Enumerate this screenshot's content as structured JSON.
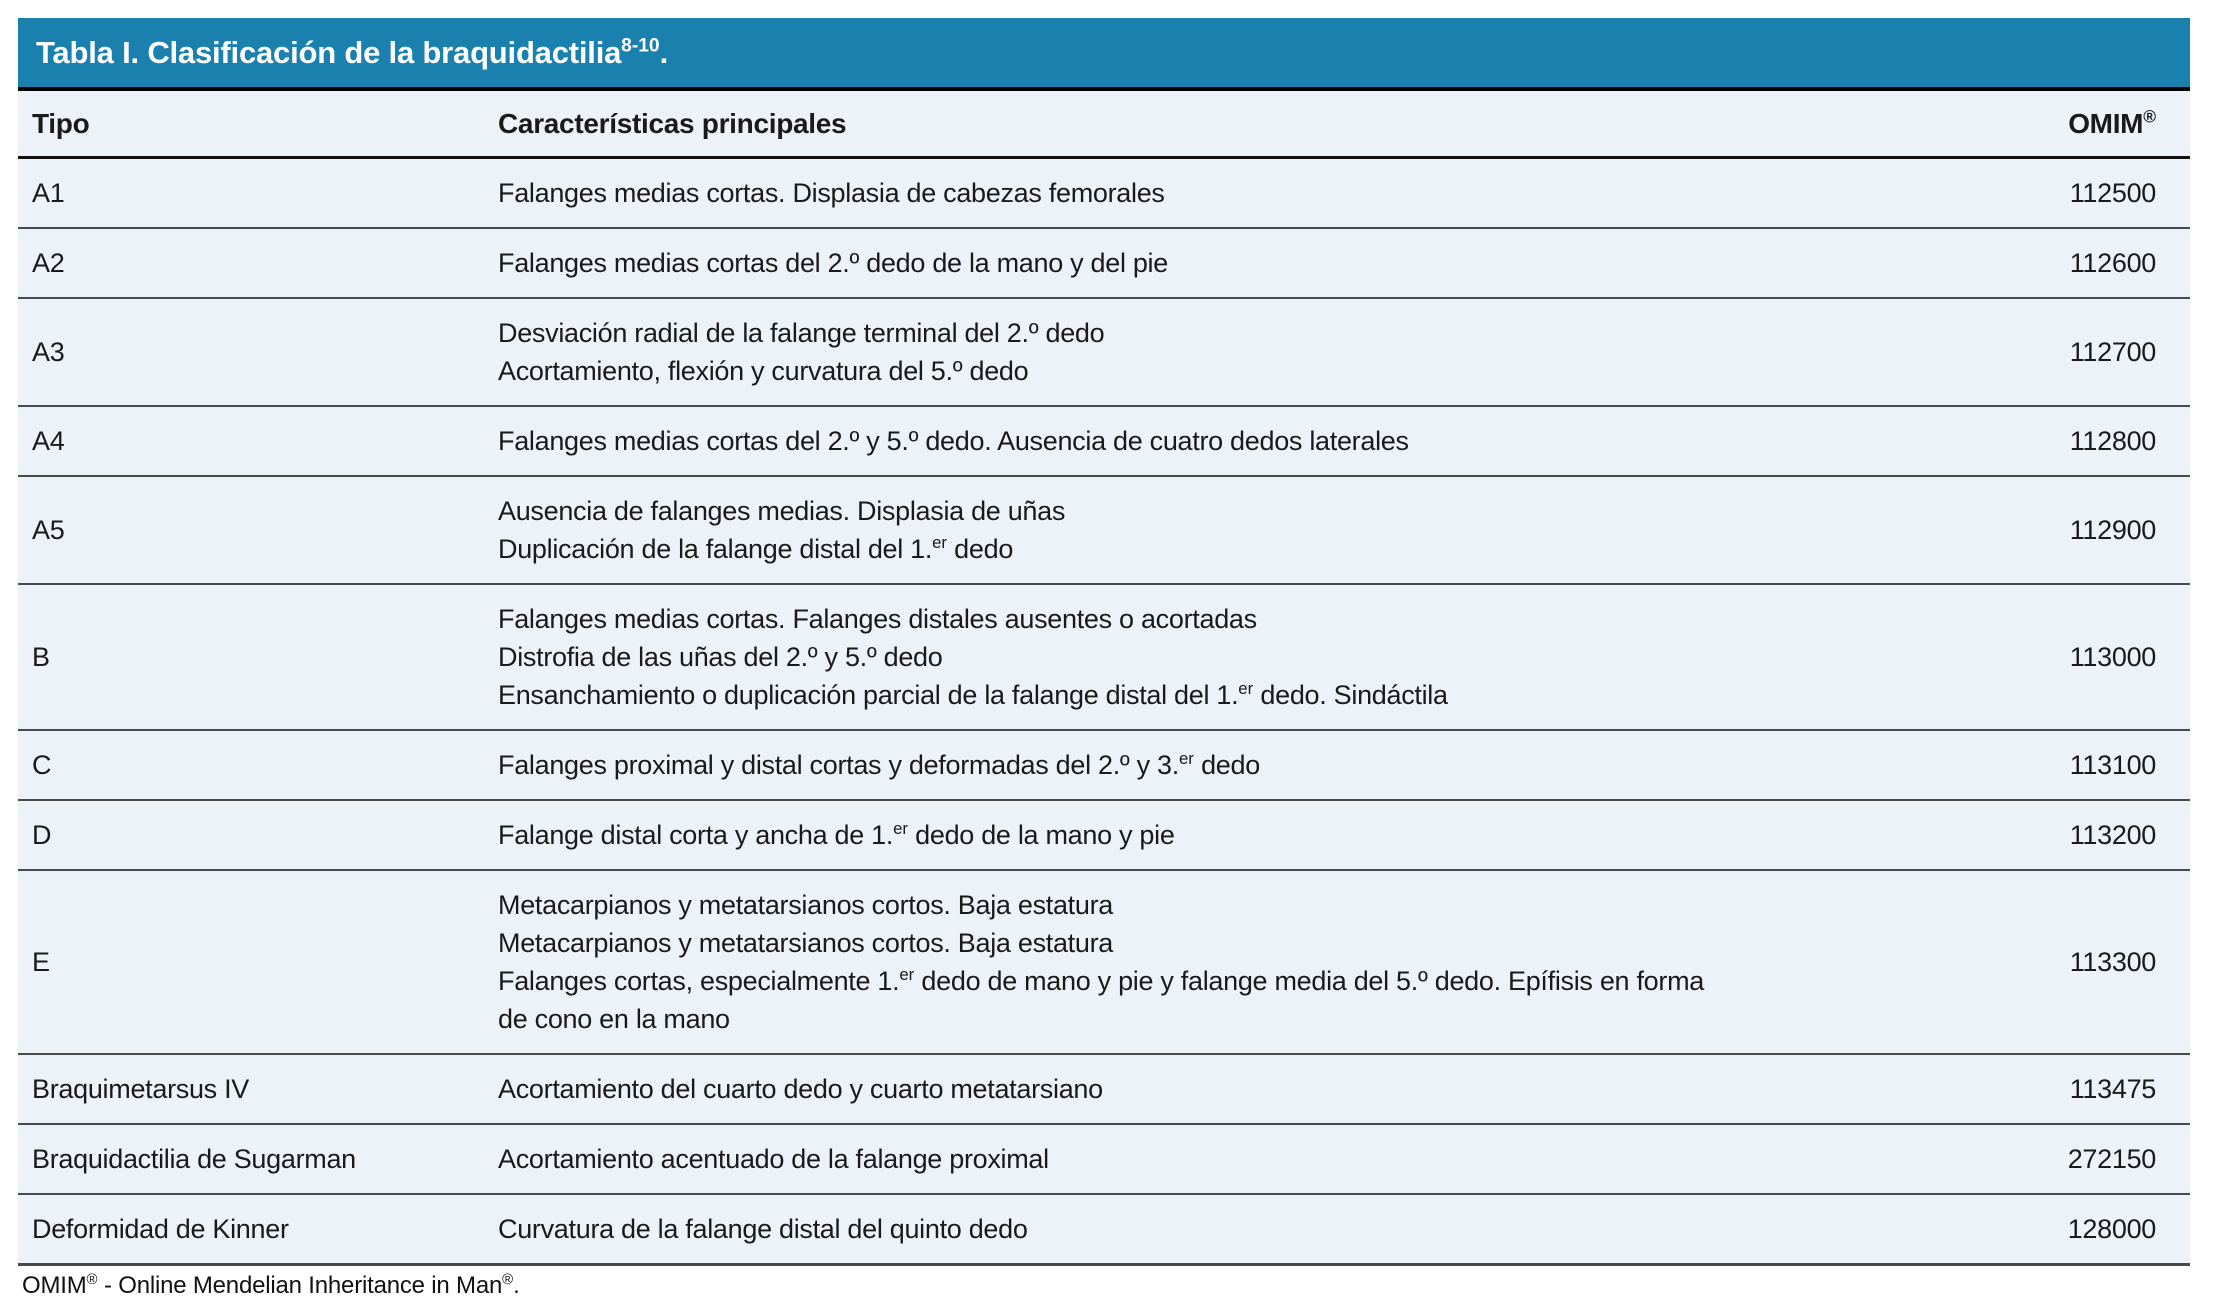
{
  "table": {
    "title": "Tabla I. Clasificación de la braquidactilia^{8-10}.",
    "accent_color": "#1a80ad",
    "row_background": "#edf1f8",
    "headers": {
      "tipo": "Tipo",
      "caracteristicas": "Características principales",
      "omim": "OMIM^{®}"
    },
    "rows": [
      {
        "tipo": "A1",
        "caracteristicas": [
          "Falanges medias cortas. Displasia de cabezas femorales"
        ],
        "omim": "112500"
      },
      {
        "tipo": "A2",
        "caracteristicas": [
          "Falanges medias cortas del 2.º dedo de la mano y del pie"
        ],
        "omim": "112600"
      },
      {
        "tipo": "A3",
        "caracteristicas": [
          "Desviación radial de la falange terminal del 2.º dedo",
          "Acortamiento, flexión y curvatura del 5.º dedo"
        ],
        "omim": "112700"
      },
      {
        "tipo": "A4",
        "caracteristicas": [
          "Falanges medias cortas del 2.º y 5.º dedo. Ausencia de cuatro dedos laterales"
        ],
        "omim": "112800"
      },
      {
        "tipo": "A5",
        "caracteristicas": [
          "Ausencia de falanges medias. Displasia de uñas",
          "Duplicación de la falange distal del 1.^{er} dedo"
        ],
        "omim": "112900"
      },
      {
        "tipo": "B",
        "caracteristicas": [
          "Falanges medias cortas. Falanges distales ausentes o acortadas",
          "Distrofia de las uñas del 2.º y 5.º dedo",
          "Ensanchamiento o duplicación parcial de la falange distal del 1.^{er} dedo. Sindáctila"
        ],
        "omim": "113000"
      },
      {
        "tipo": "C",
        "caracteristicas": [
          "Falanges proximal y distal cortas y deformadas del 2.º y 3.^{er} dedo"
        ],
        "omim": "113100"
      },
      {
        "tipo": "D",
        "caracteristicas": [
          "Falange distal corta y ancha de 1.^{er} dedo de la mano y pie"
        ],
        "omim": "113200"
      },
      {
        "tipo": "E",
        "caracteristicas": [
          "Metacarpianos y metatarsianos cortos. Baja estatura",
          "Metacarpianos y metatarsianos cortos. Baja estatura",
          "Falanges cortas, especialmente 1.^{er} dedo de mano y pie y falange media del 5.º dedo. Epífisis en forma",
          "de cono en la mano"
        ],
        "omim": "113300"
      },
      {
        "tipo": "Braquimetarsus IV",
        "caracteristicas": [
          "Acortamiento del cuarto dedo y cuarto metatarsiano"
        ],
        "omim": "113475"
      },
      {
        "tipo": "Braquidactilia de Sugarman",
        "caracteristicas": [
          "Acortamiento acentuado de la falange proximal"
        ],
        "omim": "272150"
      },
      {
        "tipo": "Deformidad de Kinner",
        "caracteristicas": [
          "Curvatura de la falange distal del quinto dedo"
        ],
        "omim": "128000"
      }
    ],
    "footnote": "OMIM^{®} - Online Mendelian Inheritance in Man^{®}."
  }
}
